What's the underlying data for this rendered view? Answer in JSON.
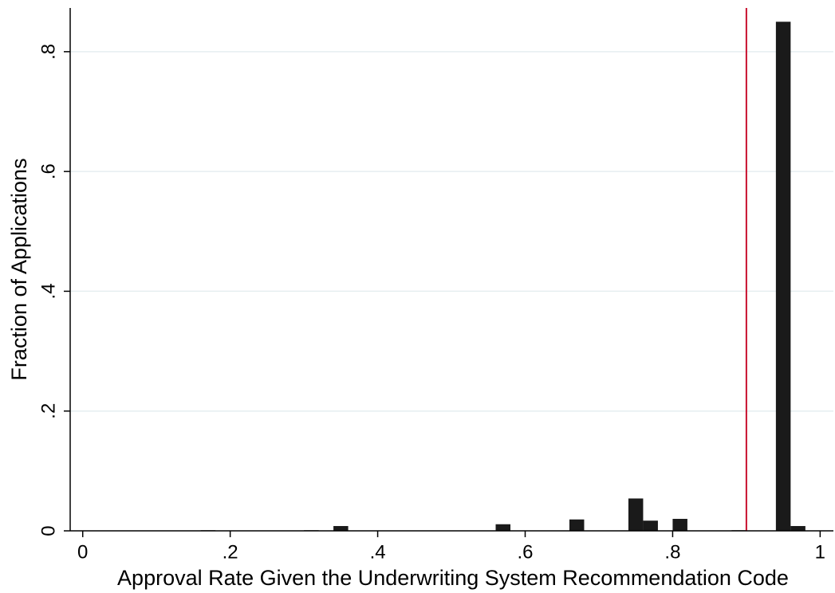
{
  "chart_data": {
    "type": "histogram",
    "x_label": "Approval Rate Given the Underwriting System Recommendation Code",
    "y_label": "Fraction of Applications",
    "bins": [
      0.16,
      0.18,
      0.2,
      0.22,
      0.24,
      0.26,
      0.28,
      0.3,
      0.32,
      0.34,
      0.36,
      0.38,
      0.4,
      0.42,
      0.44,
      0.46,
      0.48,
      0.5,
      0.52,
      0.54,
      0.56,
      0.58,
      0.6,
      0.62,
      0.64,
      0.66,
      0.68,
      0.7,
      0.72,
      0.74,
      0.76,
      0.78,
      0.8,
      0.82,
      0.84,
      0.86,
      0.88,
      0.9,
      0.92,
      0.94,
      0.96,
      0.98
    ],
    "values": [
      0.001,
      0,
      0,
      0,
      0,
      0,
      0,
      0.001,
      0,
      0.008,
      0,
      0,
      0,
      0,
      0,
      0,
      0,
      0,
      0,
      0,
      0.011,
      0,
      0,
      0,
      0,
      0.019,
      0,
      0,
      0,
      0.054,
      0.017,
      0,
      0.02,
      0,
      0,
      0,
      0.001,
      0,
      0,
      0.85,
      0.008
    ],
    "color": "#1a1a1a",
    "xline": 0.9,
    "xline_color": "#c8102e",
    "xlim": [
      -0.017,
      1.018
    ],
    "xticks": [
      0,
      {
        "value": 0.2,
        "label": ".2"
      },
      {
        "value": 0.4,
        "label": ".4"
      },
      {
        "value": 0.6,
        "label": ".6"
      },
      {
        "value": 0.8,
        "label": ".8"
      },
      1
    ],
    "ylim": [
      0,
      0.873
    ],
    "yticks": [
      0,
      {
        "value": 0.2,
        "label": ".2"
      },
      {
        "value": 0.4,
        "label": ".4"
      },
      {
        "value": 0.6,
        "label": ".6"
      },
      {
        "value": 0.8,
        "label": ".8"
      }
    ],
    "grid": true,
    "grid_color": "#e6eef0"
  }
}
